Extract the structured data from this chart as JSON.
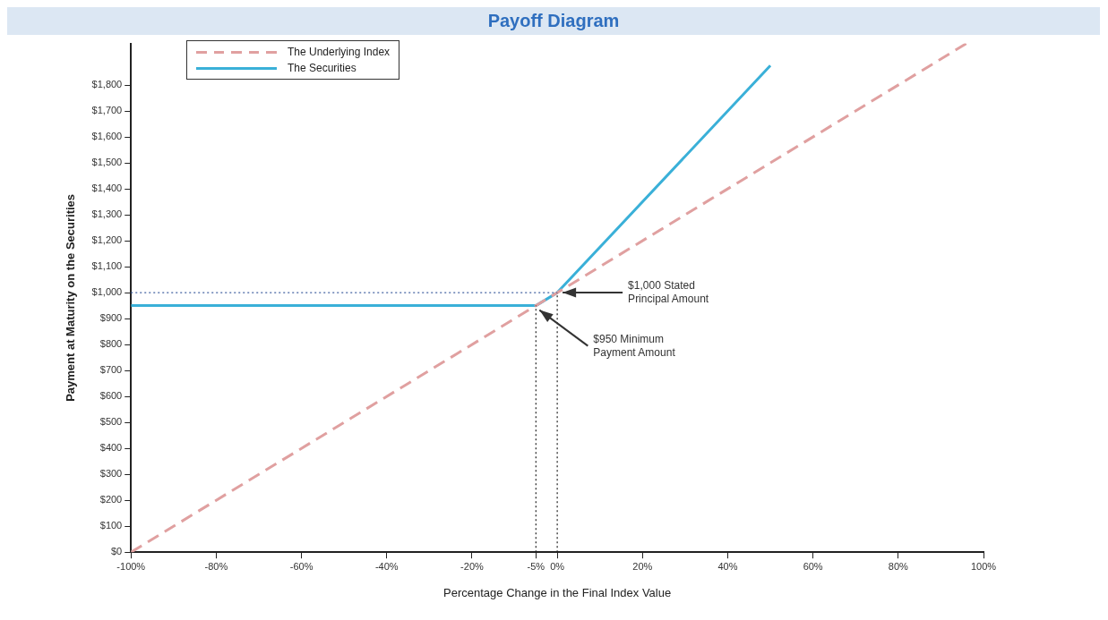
{
  "chart_data": {
    "type": "line",
    "title": "Payoff Diagram",
    "xlabel": "Percentage Change in the Final Index Value",
    "ylabel": "Payment at Maturity on the Securities",
    "xlim": [
      -100,
      100
    ],
    "ylim": [
      0,
      1960
    ],
    "xticks": [
      {
        "value": -100,
        "label": "-100%"
      },
      {
        "value": -80,
        "label": "-80%"
      },
      {
        "value": -60,
        "label": "-60%"
      },
      {
        "value": -40,
        "label": "-40%"
      },
      {
        "value": -20,
        "label": "-20%"
      },
      {
        "value": -5,
        "label": "-5%"
      },
      {
        "value": 0,
        "label": "0%"
      },
      {
        "value": 20,
        "label": "20%"
      },
      {
        "value": 40,
        "label": "40%"
      },
      {
        "value": 60,
        "label": "60%"
      },
      {
        "value": 80,
        "label": "80%"
      },
      {
        "value": 100,
        "label": "100%"
      }
    ],
    "yticks": [
      {
        "value": 0,
        "label": "$0"
      },
      {
        "value": 100,
        "label": "$100"
      },
      {
        "value": 200,
        "label": "$200"
      },
      {
        "value": 300,
        "label": "$300"
      },
      {
        "value": 400,
        "label": "$400"
      },
      {
        "value": 500,
        "label": "$500"
      },
      {
        "value": 600,
        "label": "$600"
      },
      {
        "value": 700,
        "label": "$700"
      },
      {
        "value": 800,
        "label": "$800"
      },
      {
        "value": 900,
        "label": "$900"
      },
      {
        "value": 1000,
        "label": "$1,000"
      },
      {
        "value": 1100,
        "label": "$1,100"
      },
      {
        "value": 1200,
        "label": "$1,200"
      },
      {
        "value": 1300,
        "label": "$1,300"
      },
      {
        "value": 1400,
        "label": "$1,400"
      },
      {
        "value": 1500,
        "label": "$1,500"
      },
      {
        "value": 1600,
        "label": "$1,600"
      },
      {
        "value": 1700,
        "label": "$1,700"
      },
      {
        "value": 1800,
        "label": "$1,800"
      }
    ],
    "series": [
      {
        "name": "The Underlying Index",
        "color": "#e0a0a0",
        "line_style": "dashed",
        "x": [
          -100,
          96
        ],
        "values": [
          0,
          1960
        ]
      },
      {
        "name": "The Securities",
        "color": "#3ab0d8",
        "line_style": "solid",
        "x": [
          -100,
          -5,
          0,
          50
        ],
        "values": [
          950,
          950,
          1000,
          1875
        ]
      }
    ],
    "ref_lines": [
      {
        "axis": "y",
        "value": 1000,
        "color": "#4060a0",
        "line_style": "dotted"
      },
      {
        "axis": "x",
        "value": -5,
        "color": "#202020",
        "line_style": "dotted"
      },
      {
        "axis": "x",
        "value": 0,
        "color": "#202020",
        "line_style": "dotted"
      }
    ],
    "annotations": [
      {
        "text": "$1,000 Stated Principal Amount",
        "x": 0,
        "y": 1000
      },
      {
        "text": "$950 Minimum Payment Amount",
        "x": -5,
        "y": 950
      }
    ],
    "legend": "top left",
    "grid": false,
    "marker": "none"
  }
}
